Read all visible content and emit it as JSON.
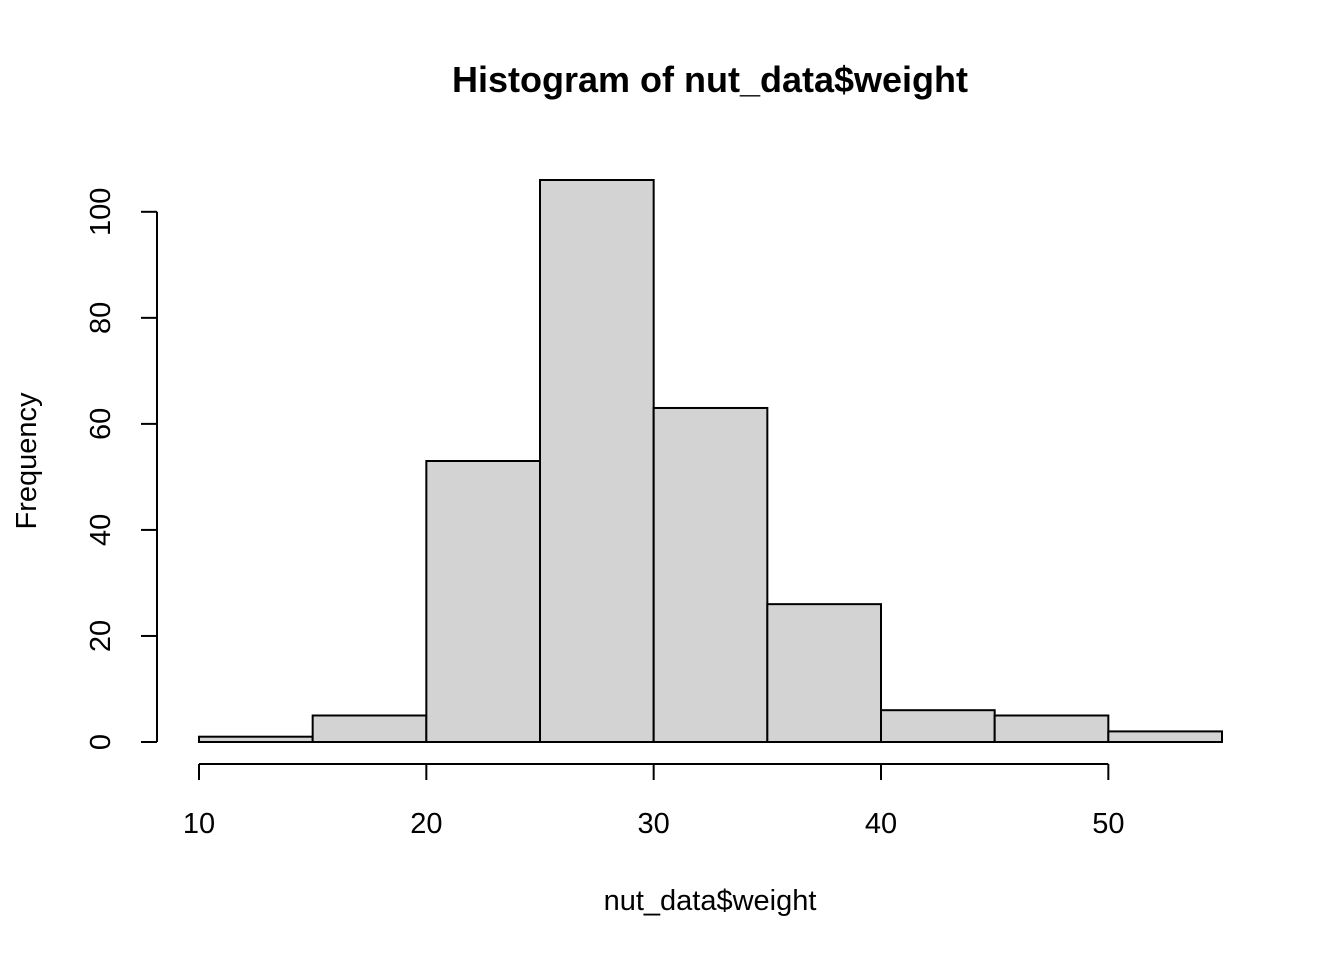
{
  "chart_data": {
    "type": "bar",
    "subtype": "histogram",
    "title": "Histogram of nut_data$weight",
    "xlabel": "nut_data$weight",
    "ylabel": "Frequency",
    "bins": [
      {
        "start": 10,
        "end": 15,
        "count": 1
      },
      {
        "start": 15,
        "end": 20,
        "count": 5
      },
      {
        "start": 20,
        "end": 25,
        "count": 53
      },
      {
        "start": 25,
        "end": 30,
        "count": 106
      },
      {
        "start": 30,
        "end": 35,
        "count": 63
      },
      {
        "start": 35,
        "end": 40,
        "count": 26
      },
      {
        "start": 40,
        "end": 45,
        "count": 6
      },
      {
        "start": 45,
        "end": 50,
        "count": 5
      },
      {
        "start": 50,
        "end": 55,
        "count": 2
      }
    ],
    "xlim": [
      10,
      55
    ],
    "ylim": [
      0,
      106
    ],
    "x_ticks": [
      10,
      20,
      30,
      40,
      50
    ],
    "y_ticks": [
      0,
      20,
      40,
      60,
      80,
      100
    ],
    "grid": false,
    "bar_color": "#d3d3d3",
    "edge_color": "#000000"
  }
}
